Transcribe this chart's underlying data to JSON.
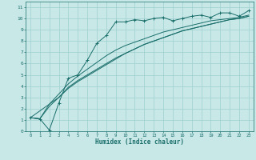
{
  "xlabel": "Humidex (Indice chaleur)",
  "xlim": [
    -0.5,
    23.5
  ],
  "ylim": [
    0,
    11.5
  ],
  "xticks": [
    0,
    1,
    2,
    3,
    4,
    5,
    6,
    7,
    8,
    9,
    10,
    11,
    12,
    13,
    14,
    15,
    16,
    17,
    18,
    19,
    20,
    21,
    22,
    23
  ],
  "yticks": [
    0,
    1,
    2,
    3,
    4,
    5,
    6,
    7,
    8,
    9,
    10,
    11
  ],
  "bg_color": "#c8e8e8",
  "line_color": "#1a6e6a",
  "grid_color": "#9fcfcf",
  "line1_x": [
    0,
    1,
    2,
    3,
    4,
    5,
    6,
    7,
    8,
    9,
    10,
    11,
    12,
    13,
    14,
    15,
    16,
    17,
    18,
    19,
    20,
    21,
    22,
    23
  ],
  "line1_y": [
    1.2,
    1.1,
    0.1,
    2.5,
    4.7,
    5.0,
    6.3,
    7.8,
    8.5,
    9.7,
    9.7,
    9.9,
    9.8,
    10.0,
    10.1,
    9.8,
    10.0,
    10.2,
    10.3,
    10.1,
    10.5,
    10.5,
    10.2,
    10.7
  ],
  "line2_x": [
    0,
    1,
    2,
    3,
    4,
    5,
    6,
    7,
    8,
    9,
    10,
    11,
    12,
    13,
    14,
    15,
    16,
    17,
    18,
    19,
    20,
    21,
    22,
    23
  ],
  "line2_y": [
    1.2,
    1.1,
    2.4,
    3.3,
    4.2,
    4.9,
    5.5,
    6.1,
    6.7,
    7.2,
    7.6,
    7.9,
    8.2,
    8.5,
    8.8,
    9.0,
    9.2,
    9.4,
    9.6,
    9.8,
    9.9,
    10.0,
    10.1,
    10.3
  ],
  "line3_x": [
    0,
    1,
    2,
    3,
    4,
    5,
    6,
    7,
    8,
    9,
    10,
    11,
    12,
    13,
    14,
    15,
    16,
    17,
    18,
    19,
    20,
    21,
    22,
    23
  ],
  "line3_y": [
    1.2,
    1.1,
    2.2,
    3.0,
    3.9,
    4.5,
    5.0,
    5.5,
    6.0,
    6.5,
    6.9,
    7.3,
    7.7,
    8.0,
    8.3,
    8.6,
    8.9,
    9.1,
    9.3,
    9.5,
    9.7,
    9.9,
    10.0,
    10.2
  ],
  "line4_x": [
    0,
    2,
    3,
    4,
    5,
    6,
    7,
    8,
    9,
    10,
    11,
    12,
    13,
    14,
    15,
    16,
    17,
    18,
    19,
    20,
    21,
    22,
    23
  ],
  "line4_y": [
    1.2,
    2.4,
    3.0,
    3.8,
    4.4,
    4.9,
    5.4,
    5.9,
    6.4,
    6.9,
    7.3,
    7.7,
    8.0,
    8.3,
    8.6,
    8.9,
    9.1,
    9.3,
    9.5,
    9.7,
    9.9,
    10.0,
    10.2
  ]
}
